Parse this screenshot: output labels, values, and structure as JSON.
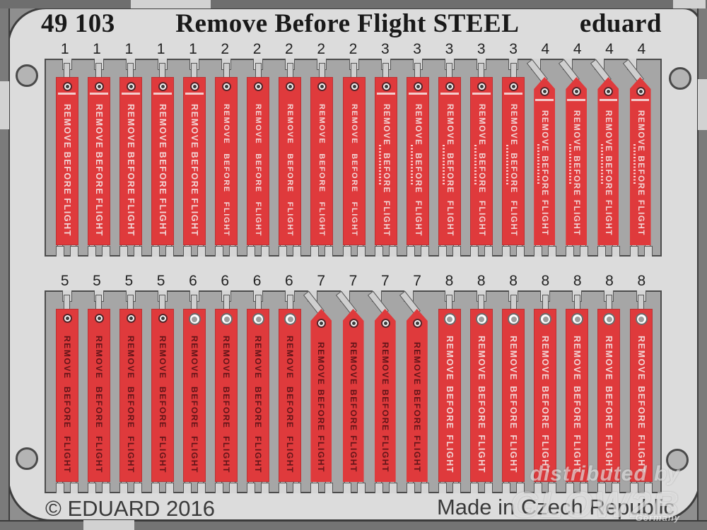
{
  "header": {
    "catalog_no": "49 103",
    "product_title": "Remove Before Flight STEEL",
    "brand": "eduard"
  },
  "ribbon": {
    "label": "REMOVE BEFORE FLIGHT",
    "flag_color": "#df3a3c",
    "light_text_color": "#f2d7d7",
    "dark_text_color": "#611418"
  },
  "sheet": {
    "frame_color": "#a6a6a6",
    "plate_color": "#dcdcdc",
    "part_types": {
      "1": {
        "top": "flat",
        "text": "light",
        "grommet": "small",
        "head_line": true,
        "micro_text": false,
        "text_size": 12.5
      },
      "2": {
        "top": "flat",
        "text": "light",
        "grommet": "small",
        "head_line": false,
        "micro_text": false,
        "text_size": 11
      },
      "3": {
        "top": "flat",
        "text": "light",
        "grommet": "small",
        "head_line": true,
        "micro_text": true,
        "text_size": 11.5
      },
      "4": {
        "top": "pointed",
        "text": "light",
        "grommet": "small",
        "head_line": true,
        "micro_text": true,
        "text_size": 11.5
      },
      "5": {
        "top": "flat",
        "text": "dark",
        "grommet": "small",
        "head_line": false,
        "micro_text": false,
        "text_size": 12
      },
      "6": {
        "top": "flat",
        "text": "dark",
        "grommet": "large",
        "head_line": false,
        "micro_text": false,
        "text_size": 12
      },
      "7": {
        "top": "pointed",
        "text": "dark",
        "grommet": "small",
        "head_line": false,
        "micro_text": false,
        "text_size": 12
      },
      "8": {
        "top": "flat",
        "text": "light",
        "grommet": "large",
        "head_line": false,
        "micro_text": false,
        "text_size": 12.5
      }
    },
    "rows": [
      {
        "name": "top-row",
        "parts": [
          "1",
          "1",
          "1",
          "1",
          "1",
          "2",
          "2",
          "2",
          "2",
          "2",
          "3",
          "3",
          "3",
          "3",
          "3",
          "4",
          "4",
          "4",
          "4"
        ]
      },
      {
        "name": "bottom-row",
        "parts": [
          "5",
          "5",
          "5",
          "5",
          "6",
          "6",
          "6",
          "6",
          "7",
          "7",
          "7",
          "7",
          "8",
          "8",
          "8",
          "8",
          "8",
          "8",
          "8"
        ]
      }
    ]
  },
  "footer": {
    "copyright": "© EDUARD 2016",
    "made_in": "Made in Czech Republic"
  },
  "watermark": {
    "line1": "distributed by",
    "brand": "GLOW2B",
    "country": "Germany"
  }
}
